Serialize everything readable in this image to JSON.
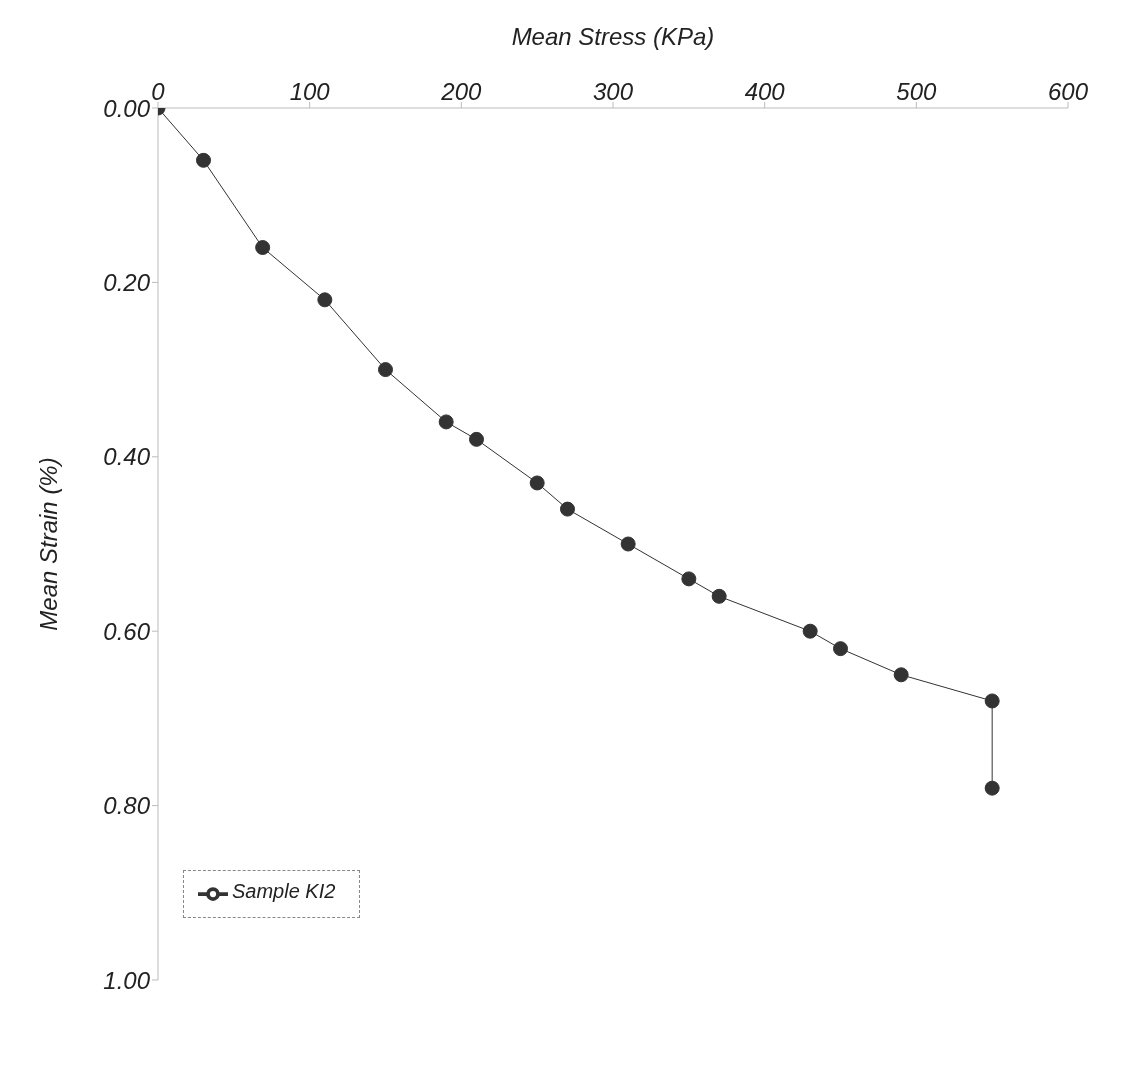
{
  "chart_data": {
    "type": "line",
    "xlabel": "Mean Stress (KPa)",
    "ylabel": "Mean Strain (%)",
    "x": [
      0,
      30,
      69,
      110,
      150,
      190,
      210,
      250,
      270,
      310,
      350,
      370,
      430,
      450,
      490,
      550,
      550
    ],
    "series": [
      {
        "name": "Sample KI2",
        "color": "#333333",
        "values": [
          0,
          0.06,
          0.16,
          0.22,
          0.3,
          0.36,
          0.38,
          0.43,
          0.46,
          0.5,
          0.54,
          0.56,
          0.6,
          0.62,
          0.65,
          0.68,
          0.78
        ]
      }
    ],
    "xlim": [
      0,
      600
    ],
    "xticks": [
      0,
      100,
      200,
      300,
      400,
      500,
      600
    ],
    "ylim": [
      1,
      0
    ],
    "yticks": [
      {
        "value": 0,
        "label": "0.00"
      },
      {
        "value": 0.2,
        "label": "0.20"
      },
      {
        "value": 0.4,
        "label": "0.40"
      },
      {
        "value": 0.6,
        "label": "0.60"
      },
      {
        "value": 0.8,
        "label": "0.80"
      },
      {
        "value": 1,
        "label": "1.00"
      }
    ],
    "legend": "bottom left",
    "marker": "circle",
    "line_style": "solid",
    "grid": false
  }
}
